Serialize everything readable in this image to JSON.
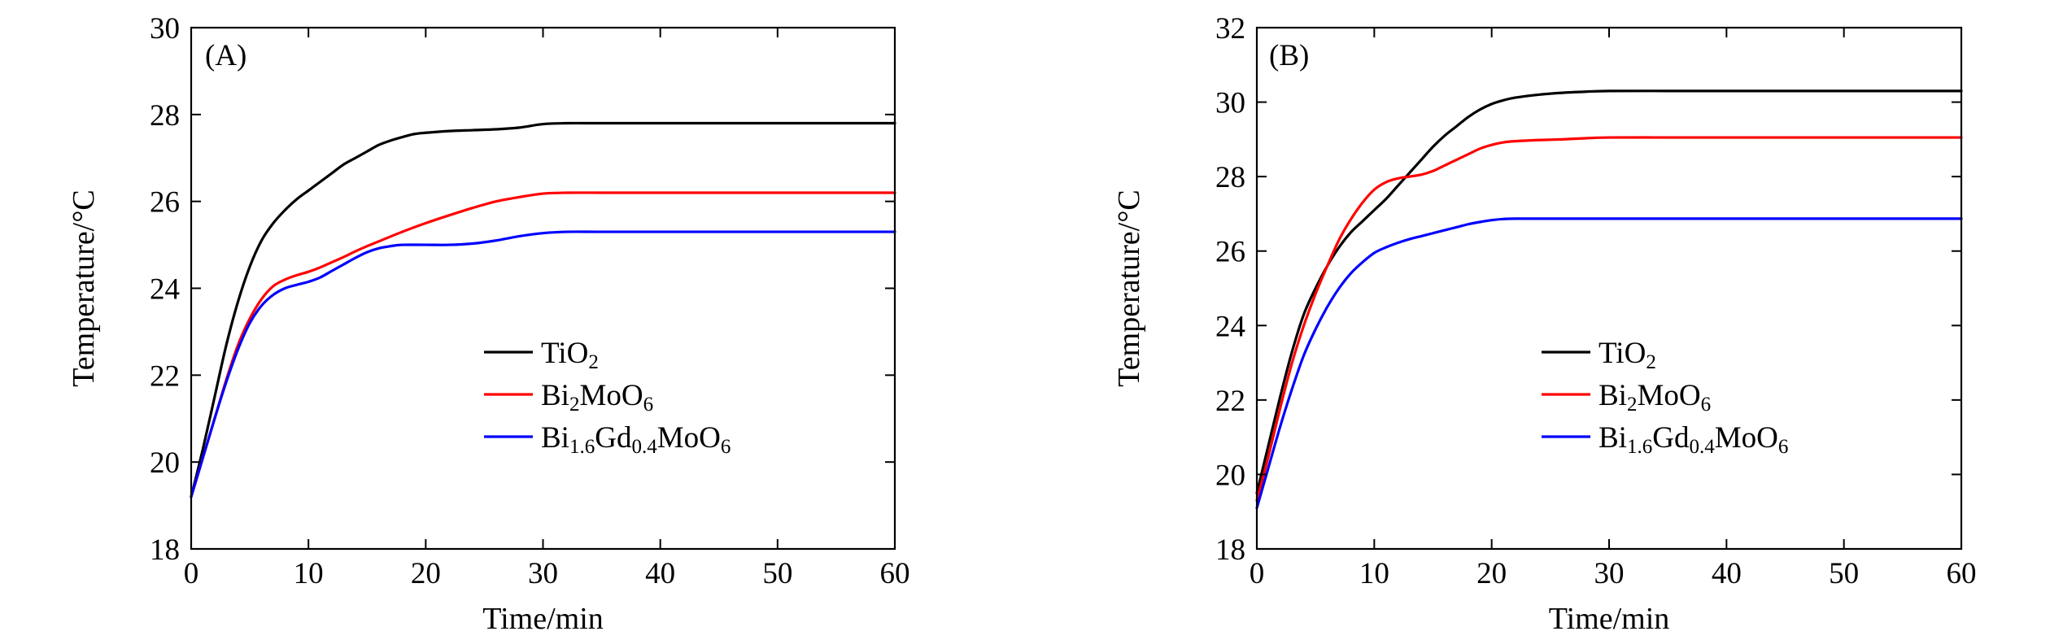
{
  "chart_data": [
    {
      "type": "line",
      "panel_label": "(A)",
      "xlabel": "Time/min",
      "ylabel": "Temperature/°C",
      "xlim": [
        0,
        60
      ],
      "ylim": [
        18,
        30
      ],
      "xticks": [
        "0",
        "10",
        "20",
        "30",
        "40",
        "50",
        "60"
      ],
      "yticks": [
        "18",
        "20",
        "22",
        "24",
        "26",
        "28",
        "30"
      ],
      "grid": false,
      "legend_position": "center-right",
      "series": [
        {
          "name": "TiO2",
          "color": "#000000",
          "legend": [
            {
              "t": "TiO"
            },
            {
              "t": "2",
              "sub": true
            }
          ],
          "x": [
            0,
            1,
            2,
            3,
            4,
            5,
            6,
            7,
            8,
            9,
            10,
            11,
            12,
            13,
            14,
            15,
            16,
            17,
            18,
            19,
            20,
            22,
            24,
            26,
            28,
            30,
            32,
            35,
            40,
            45,
            50,
            55,
            60
          ],
          "y": [
            19.2,
            20.3,
            21.5,
            22.7,
            23.7,
            24.5,
            25.1,
            25.5,
            25.8,
            26.05,
            26.25,
            26.45,
            26.65,
            26.85,
            27.0,
            27.15,
            27.3,
            27.4,
            27.48,
            27.55,
            27.58,
            27.62,
            27.64,
            27.66,
            27.7,
            27.78,
            27.8,
            27.8,
            27.8,
            27.8,
            27.8,
            27.8,
            27.8
          ]
        },
        {
          "name": "Bi2MoO6",
          "color": "#ff0000",
          "legend": [
            {
              "t": "Bi"
            },
            {
              "t": "2",
              "sub": true
            },
            {
              "t": "MoO"
            },
            {
              "t": "6",
              "sub": true
            }
          ],
          "x": [
            0,
            1,
            2,
            3,
            4,
            5,
            6,
            7,
            8,
            9,
            10,
            11,
            12,
            13,
            14,
            15,
            16,
            18,
            20,
            22,
            24,
            26,
            28,
            30,
            32,
            35,
            40,
            45,
            50,
            55,
            60
          ],
          "y": [
            19.2,
            20.1,
            21.0,
            21.9,
            22.7,
            23.3,
            23.75,
            24.05,
            24.2,
            24.3,
            24.38,
            24.48,
            24.6,
            24.72,
            24.85,
            24.97,
            25.08,
            25.3,
            25.5,
            25.68,
            25.85,
            26.0,
            26.1,
            26.18,
            26.2,
            26.2,
            26.2,
            26.2,
            26.2,
            26.2,
            26.2
          ]
        },
        {
          "name": "Bi1.6Gd0.4MoO6",
          "color": "#0000ff",
          "legend": [
            {
              "t": "Bi"
            },
            {
              "t": "1.6",
              "sub": true
            },
            {
              "t": "Gd"
            },
            {
              "t": "0.4",
              "sub": true
            },
            {
              "t": "MoO"
            },
            {
              "t": "6",
              "sub": true
            }
          ],
          "x": [
            0,
            1,
            2,
            3,
            4,
            5,
            6,
            7,
            8,
            9,
            10,
            11,
            12,
            13,
            14,
            15,
            16,
            17,
            18,
            20,
            22,
            24,
            26,
            28,
            30,
            32,
            35,
            40,
            45,
            50,
            55,
            60
          ],
          "y": [
            19.2,
            20.1,
            21.0,
            21.85,
            22.6,
            23.2,
            23.6,
            23.85,
            24.0,
            24.08,
            24.15,
            24.25,
            24.4,
            24.55,
            24.7,
            24.83,
            24.92,
            24.97,
            25.0,
            25.0,
            25.0,
            25.03,
            25.1,
            25.2,
            25.27,
            25.3,
            25.3,
            25.3,
            25.3,
            25.3,
            25.3,
            25.3
          ]
        }
      ]
    },
    {
      "type": "line",
      "panel_label": "(B)",
      "xlabel": "Time/min",
      "ylabel": "Temperature/°C",
      "xlim": [
        0,
        60
      ],
      "ylim": [
        18,
        32
      ],
      "xticks": [
        "0",
        "10",
        "20",
        "30",
        "40",
        "50",
        "60"
      ],
      "yticks": [
        "18",
        "20",
        "22",
        "24",
        "26",
        "28",
        "30",
        "32"
      ],
      "grid": false,
      "legend_position": "center-right",
      "series": [
        {
          "name": "TiO2",
          "color": "#000000",
          "legend": [
            {
              "t": "TiO"
            },
            {
              "t": "2",
              "sub": true
            }
          ],
          "x": [
            0,
            1,
            2,
            3,
            4,
            5,
            6,
            7,
            8,
            9,
            10,
            11,
            12,
            13,
            14,
            15,
            16,
            17,
            18,
            19,
            20,
            21,
            22,
            24,
            26,
            28,
            30,
            35,
            40,
            45,
            50,
            55,
            60
          ],
          "y": [
            19.5,
            20.8,
            22.1,
            23.3,
            24.3,
            25.0,
            25.6,
            26.1,
            26.5,
            26.8,
            27.1,
            27.4,
            27.75,
            28.1,
            28.45,
            28.8,
            29.1,
            29.35,
            29.6,
            29.8,
            29.95,
            30.05,
            30.12,
            30.2,
            30.25,
            30.28,
            30.3,
            30.3,
            30.3,
            30.3,
            30.3,
            30.3,
            30.3
          ]
        },
        {
          "name": "Bi2MoO6",
          "color": "#ff0000",
          "legend": [
            {
              "t": "Bi"
            },
            {
              "t": "2",
              "sub": true
            },
            {
              "t": "MoO"
            },
            {
              "t": "6",
              "sub": true
            }
          ],
          "x": [
            0,
            1,
            2,
            3,
            4,
            5,
            6,
            7,
            8,
            9,
            10,
            11,
            12,
            13,
            14,
            15,
            16,
            17,
            18,
            19,
            20,
            21,
            22,
            24,
            26,
            28,
            30,
            35,
            40,
            45,
            50,
            55,
            60
          ],
          "y": [
            19.3,
            20.5,
            21.8,
            23.0,
            24.0,
            24.85,
            25.6,
            26.3,
            26.85,
            27.3,
            27.65,
            27.85,
            27.95,
            28.0,
            28.05,
            28.15,
            28.3,
            28.45,
            28.6,
            28.75,
            28.85,
            28.92,
            28.95,
            28.98,
            29.0,
            29.03,
            29.05,
            29.05,
            29.05,
            29.05,
            29.05,
            29.05,
            29.05
          ]
        },
        {
          "name": "Bi1.6Gd0.4MoO6",
          "color": "#0000ff",
          "legend": [
            {
              "t": "Bi"
            },
            {
              "t": "1.6",
              "sub": true
            },
            {
              "t": "Gd"
            },
            {
              "t": "0.4",
              "sub": true
            },
            {
              "t": "MoO"
            },
            {
              "t": "6",
              "sub": true
            }
          ],
          "x": [
            0,
            1,
            2,
            3,
            4,
            5,
            6,
            7,
            8,
            9,
            10,
            11,
            12,
            13,
            14,
            15,
            16,
            17,
            18,
            19,
            20,
            21,
            22,
            25,
            30,
            35,
            40,
            45,
            50,
            55,
            60
          ],
          "y": [
            19.1,
            20.2,
            21.3,
            22.3,
            23.2,
            23.9,
            24.5,
            25.0,
            25.4,
            25.7,
            25.95,
            26.1,
            26.22,
            26.32,
            26.4,
            26.48,
            26.56,
            26.64,
            26.72,
            26.78,
            26.83,
            26.86,
            26.87,
            26.87,
            26.87,
            26.87,
            26.87,
            26.87,
            26.87,
            26.87,
            26.87
          ]
        }
      ]
    }
  ]
}
